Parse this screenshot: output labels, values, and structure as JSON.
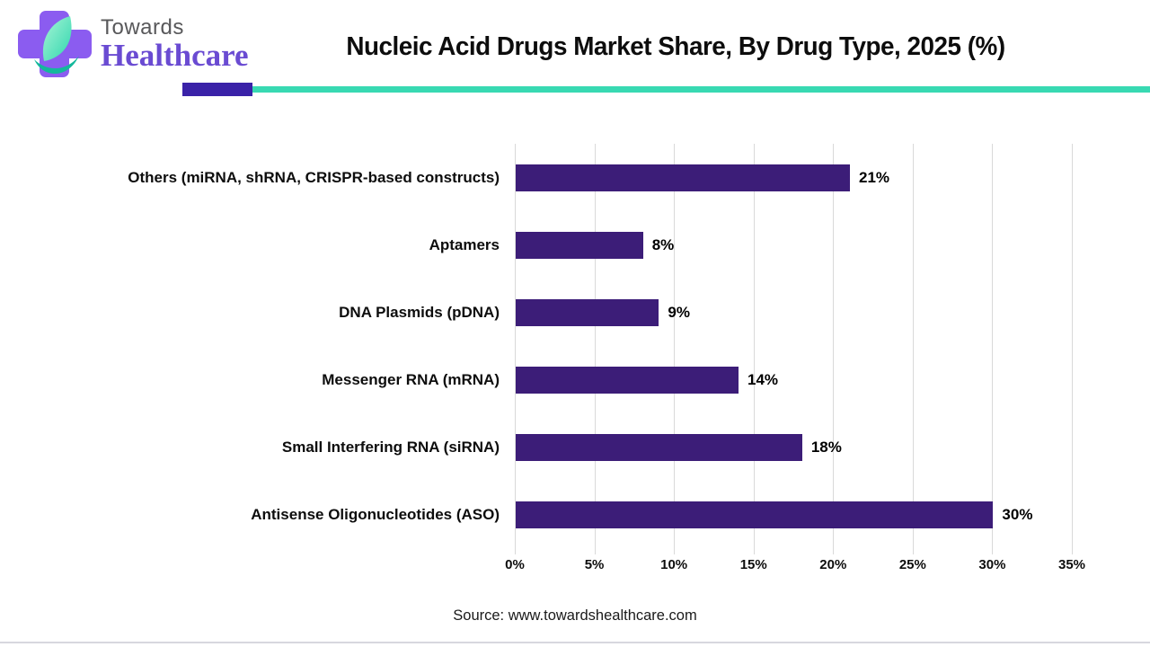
{
  "brand": {
    "name_top": "Towards",
    "name_bottom": "Healthcare",
    "colors": {
      "cross_purple": "#8b5cf0",
      "leaf_teal_light": "#8ff0cd",
      "leaf_teal": "#3ddcb4",
      "swoosh_teal": "#14b89c",
      "towards_gray": "#58585a",
      "healthcare_purple": "#6a4bd2"
    }
  },
  "header": {
    "title": "Nucleic Acid Drugs Market Share, By Drug Type, 2025 (%)",
    "divider_purple_color": "#3a22a8",
    "divider_teal_color": "#38d9b2"
  },
  "chart_data": {
    "type": "bar",
    "orientation": "horizontal",
    "title": "Nucleic Acid Drugs Market Share, By Drug Type, 2025 (%)",
    "categories": [
      "Others (miRNA, shRNA, CRISPR-based constructs)",
      "Aptamers",
      "DNA Plasmids (pDNA)",
      "Messenger RNA (mRNA)",
      "Small Interfering RNA (siRNA)",
      "Antisense Oligonucleotides (ASO)"
    ],
    "values": [
      21,
      8,
      9,
      14,
      18,
      30
    ],
    "value_labels": [
      "21%",
      "8%",
      "9%",
      "14%",
      "18%",
      "30%"
    ],
    "x_ticks": [
      "0%",
      "5%",
      "10%",
      "15%",
      "20%",
      "25%",
      "30%",
      "35%"
    ],
    "xlim": [
      0,
      35
    ],
    "grid": true,
    "legend": "none",
    "bar_color": "#3c1d78",
    "grid_color": "#d9d9d9"
  },
  "footer": {
    "source": "Source: www.towardshealthcare.com"
  }
}
